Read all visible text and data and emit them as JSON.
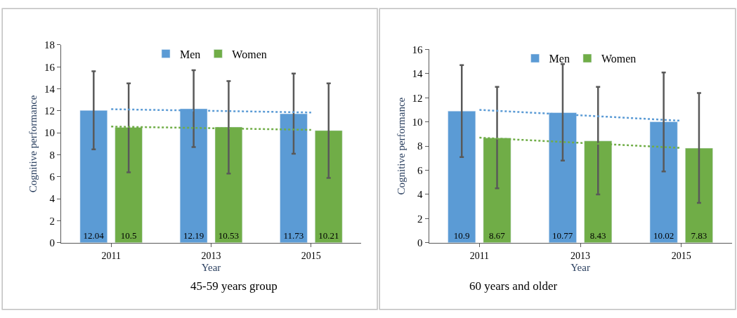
{
  "chart_data": [
    {
      "type": "bar",
      "title": "45-59 years group",
      "xlabel": "Year",
      "ylabel": "Cognitive performance",
      "categories": [
        "2011",
        "2013",
        "2015"
      ],
      "ylim": [
        0,
        18
      ],
      "yticks": [
        0,
        2,
        4,
        6,
        8,
        10,
        12,
        14,
        16,
        18
      ],
      "legend": "top",
      "series": [
        {
          "name": "Men",
          "color": "#5b9bd5",
          "values": [
            12.04,
            12.19,
            11.73
          ],
          "value_labels": [
            "12.04",
            "12.19",
            "11.73"
          ],
          "errors": [
            [
              8.5,
              15.6
            ],
            [
              8.7,
              15.7
            ],
            [
              8.1,
              15.4
            ]
          ]
        },
        {
          "name": "Women",
          "color": "#70ad47",
          "values": [
            10.5,
            10.53,
            10.21
          ],
          "value_labels": [
            "10.5",
            "10.53",
            "10.21"
          ],
          "errors": [
            [
              6.4,
              14.5
            ],
            [
              6.3,
              14.7
            ],
            [
              5.9,
              14.5
            ]
          ]
        },
        {
          "type": "line",
          "color": "#5b9bd5",
          "line_style": "dotted",
          "values": [
            12.15,
            12.0,
            11.85
          ]
        },
        {
          "type": "line",
          "color": "#70ad47",
          "line_style": "dotted",
          "values": [
            10.57,
            10.42,
            10.27
          ]
        }
      ]
    },
    {
      "type": "bar",
      "title": "60 years and older",
      "xlabel": "Year",
      "ylabel": "Cognitive performance",
      "categories": [
        "2011",
        "2013",
        "2015"
      ],
      "ylim": [
        0,
        16
      ],
      "yticks": [
        0,
        2,
        4,
        6,
        8,
        10,
        12,
        14,
        16
      ],
      "legend": "top",
      "series": [
        {
          "name": "Men",
          "color": "#5b9bd5",
          "values": [
            10.9,
            10.77,
            10.02
          ],
          "value_labels": [
            "10.9",
            "10.77",
            "10.02"
          ],
          "errors": [
            [
              7.1,
              14.7
            ],
            [
              6.8,
              14.8
            ],
            [
              5.9,
              14.1
            ]
          ]
        },
        {
          "name": "Women",
          "color": "#70ad47",
          "values": [
            8.67,
            8.43,
            7.83
          ],
          "value_labels": [
            "8.67",
            "8.43",
            "7.83"
          ],
          "errors": [
            [
              4.5,
              12.9
            ],
            [
              4.0,
              12.9
            ],
            [
              3.3,
              12.4
            ]
          ]
        },
        {
          "type": "line",
          "color": "#5b9bd5",
          "line_style": "dotted",
          "values": [
            11.0,
            10.55,
            10.1
          ]
        },
        {
          "type": "line",
          "color": "#70ad47",
          "line_style": "dotted",
          "values": [
            8.7,
            8.27,
            7.85
          ]
        }
      ]
    }
  ]
}
